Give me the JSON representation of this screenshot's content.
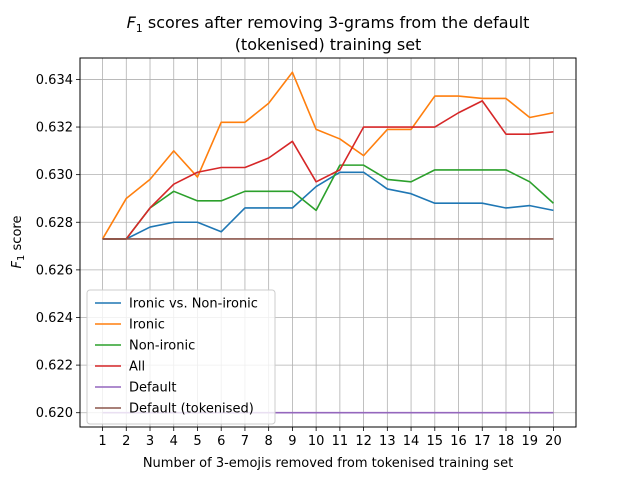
{
  "chart_data": {
    "type": "line",
    "title_prefix": "F",
    "title_sub": "1",
    "title_line1_rest": " scores after removing 3-grams from the default",
    "title_line2": "(tokenised) training set",
    "xlabel": "Number of 3-emojis removed from tokenised training set",
    "ylabel_prefix": "F",
    "ylabel_sub": "1",
    "ylabel_rest": " score",
    "x": [
      1,
      2,
      3,
      4,
      5,
      6,
      7,
      8,
      9,
      10,
      11,
      12,
      13,
      14,
      15,
      16,
      17,
      18,
      19,
      20
    ],
    "xlim": [
      0.05,
      20.95
    ],
    "ylim": [
      0.6194,
      0.6349
    ],
    "yticks": [
      0.62,
      0.622,
      0.624,
      0.626,
      0.628,
      0.63,
      0.632,
      0.634
    ],
    "ytick_labels": [
      "0.620",
      "0.622",
      "0.624",
      "0.626",
      "0.628",
      "0.630",
      "0.632",
      "0.634"
    ],
    "xtick_labels": [
      "1",
      "2",
      "3",
      "4",
      "5",
      "6",
      "7",
      "8",
      "9",
      "10",
      "11",
      "12",
      "13",
      "14",
      "15",
      "16",
      "17",
      "18",
      "19",
      "20"
    ],
    "grid": true,
    "legend_position": "lower-left",
    "series": [
      {
        "name": "Ironic vs. Non-ironic",
        "color": "#1f77b4",
        "values": [
          0.6273,
          0.6273,
          0.6278,
          0.628,
          0.628,
          0.6276,
          0.6286,
          0.6286,
          0.6286,
          0.6295,
          0.6301,
          0.6301,
          0.6294,
          0.6292,
          0.6288,
          0.6288,
          0.6288,
          0.6286,
          0.6287,
          0.6285
        ]
      },
      {
        "name": "Ironic",
        "color": "#ff7f0e",
        "values": [
          0.6273,
          0.629,
          0.6298,
          0.631,
          0.6299,
          0.6322,
          0.6322,
          0.633,
          0.6343,
          0.6319,
          0.6315,
          0.6308,
          0.6319,
          0.6319,
          0.6333,
          0.6333,
          0.6332,
          0.6332,
          0.6324,
          0.6326
        ]
      },
      {
        "name": "Non-ironic",
        "color": "#2ca02c",
        "values": [
          0.6273,
          0.6273,
          0.6286,
          0.6293,
          0.6289,
          0.6289,
          0.6293,
          0.6293,
          0.6293,
          0.6285,
          0.6304,
          0.6304,
          0.6298,
          0.6297,
          0.6302,
          0.6302,
          0.6302,
          0.6302,
          0.6297,
          0.6288
        ]
      },
      {
        "name": "All",
        "color": "#d62728",
        "values": [
          0.6273,
          0.6273,
          0.6286,
          0.6296,
          0.6301,
          0.6303,
          0.6303,
          0.6307,
          0.6314,
          0.6297,
          0.6302,
          0.632,
          0.632,
          0.632,
          0.632,
          0.6326,
          0.6331,
          0.6317,
          0.6317,
          0.6318
        ]
      },
      {
        "name": "Default",
        "color": "#9467bd",
        "values": [
          0.62,
          0.62,
          0.62,
          0.62,
          0.62,
          0.62,
          0.62,
          0.62,
          0.62,
          0.62,
          0.62,
          0.62,
          0.62,
          0.62,
          0.62,
          0.62,
          0.62,
          0.62,
          0.62,
          0.62
        ]
      },
      {
        "name": "Default (tokenised)",
        "color": "#8c564b",
        "values": [
          0.6273,
          0.6273,
          0.6273,
          0.6273,
          0.6273,
          0.6273,
          0.6273,
          0.6273,
          0.6273,
          0.6273,
          0.6273,
          0.6273,
          0.6273,
          0.6273,
          0.6273,
          0.6273,
          0.6273,
          0.6273,
          0.6273,
          0.6273
        ]
      }
    ]
  }
}
